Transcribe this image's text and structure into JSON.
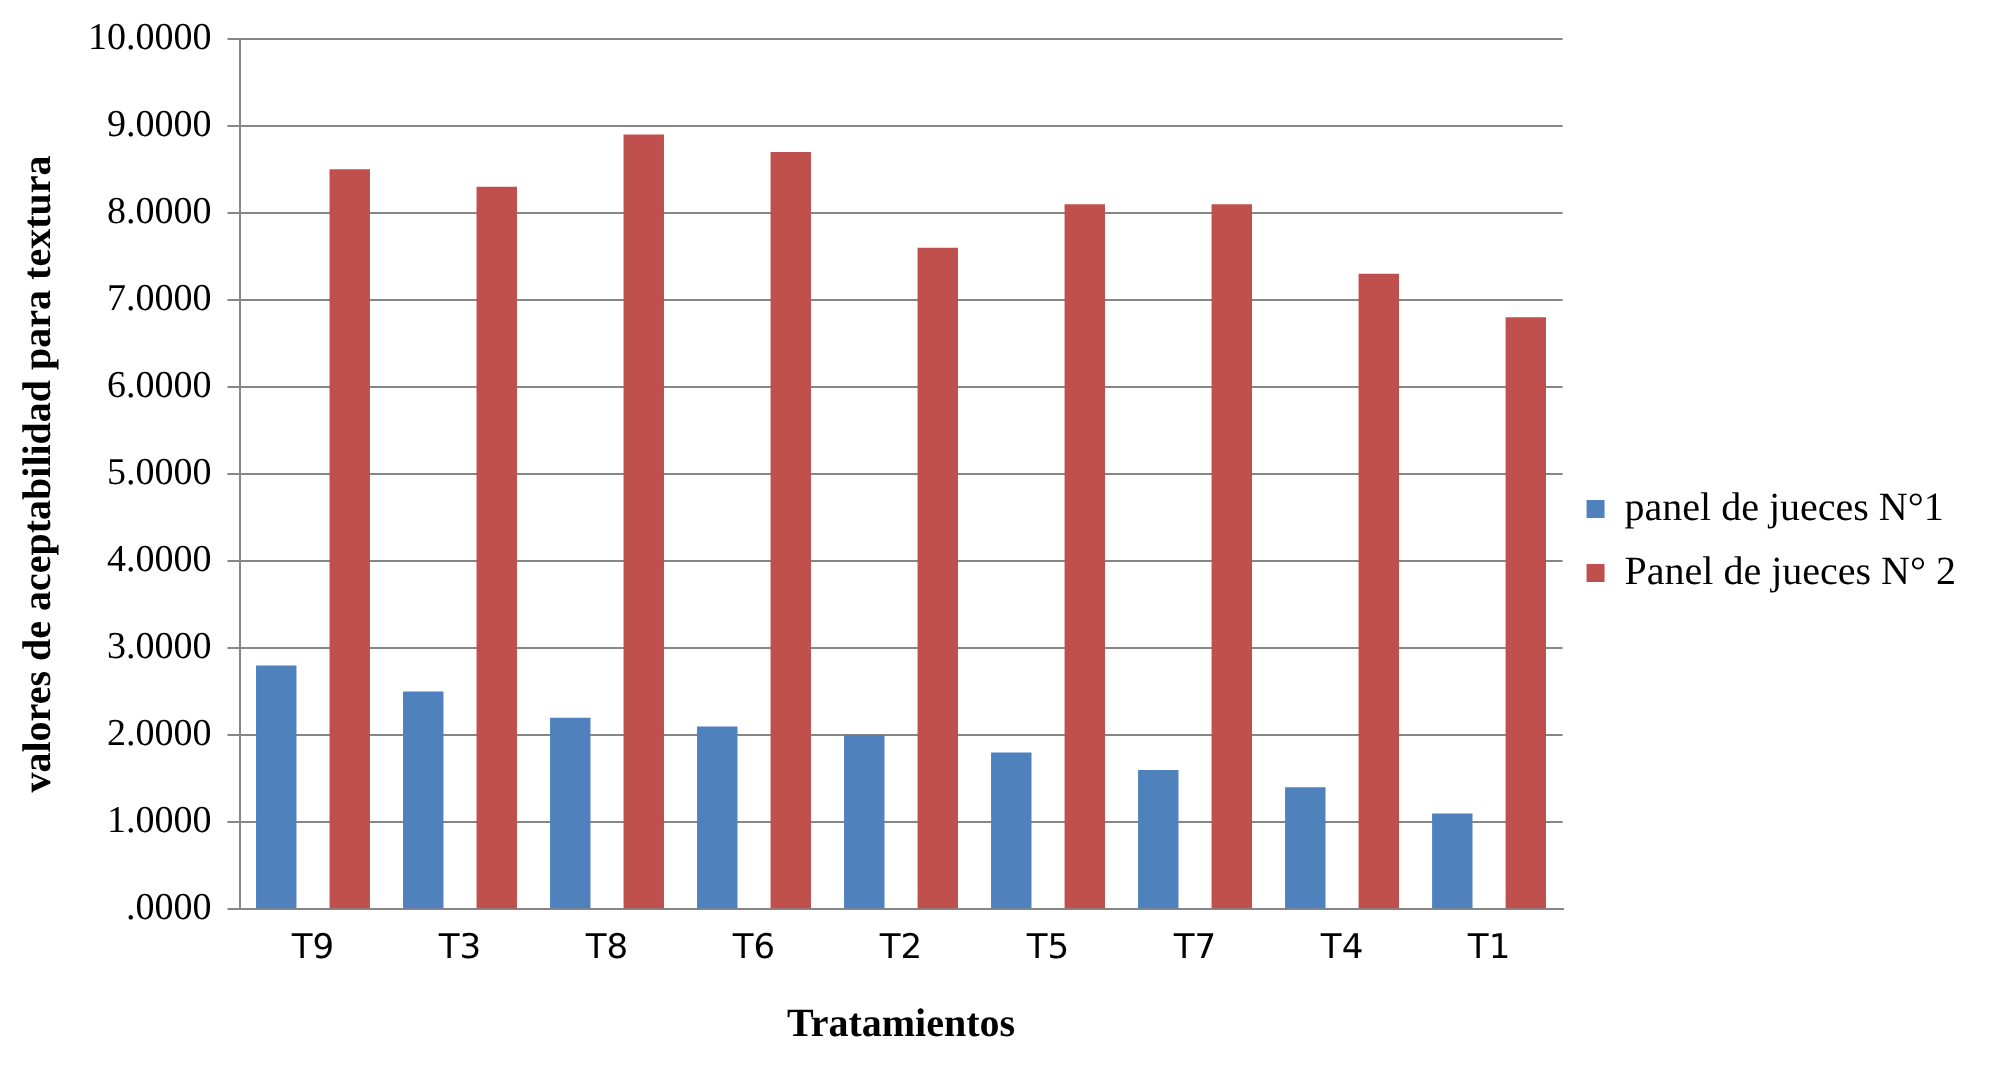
{
  "chart_data": {
    "type": "bar",
    "xlabel": "Tratamientos",
    "ylabel": "valores de aceptabilidad para textura",
    "categories": [
      "T9",
      "T3",
      "T8",
      "T6",
      "T2",
      "T5",
      "T7",
      "T4",
      "T1"
    ],
    "series": [
      {
        "name": "panel de jueces N°1",
        "color": "#4f81bd",
        "values": [
          2.8,
          2.5,
          2.2,
          2.1,
          2.0,
          1.8,
          1.6,
          1.4,
          1.1
        ]
      },
      {
        "name": "Panel de jueces N° 2",
        "color": "#c0504d",
        "values": [
          8.5,
          8.3,
          8.9,
          8.7,
          7.6,
          8.1,
          8.1,
          7.3,
          6.8
        ]
      }
    ],
    "ylim": [
      0,
      10
    ],
    "yticks": [
      {
        "value": 0,
        "label": ".0000"
      },
      {
        "value": 1,
        "label": "1.0000"
      },
      {
        "value": 2,
        "label": "2.0000"
      },
      {
        "value": 3,
        "label": "3.0000"
      },
      {
        "value": 4,
        "label": "4.0000"
      },
      {
        "value": 5,
        "label": "5.0000"
      },
      {
        "value": 6,
        "label": "6.0000"
      },
      {
        "value": 7,
        "label": "7.0000"
      },
      {
        "value": 8,
        "label": "8.0000"
      },
      {
        "value": 9,
        "label": "9.0000"
      },
      {
        "value": 10,
        "label": "10.0000"
      }
    ],
    "grid": "y",
    "legend": "right"
  }
}
